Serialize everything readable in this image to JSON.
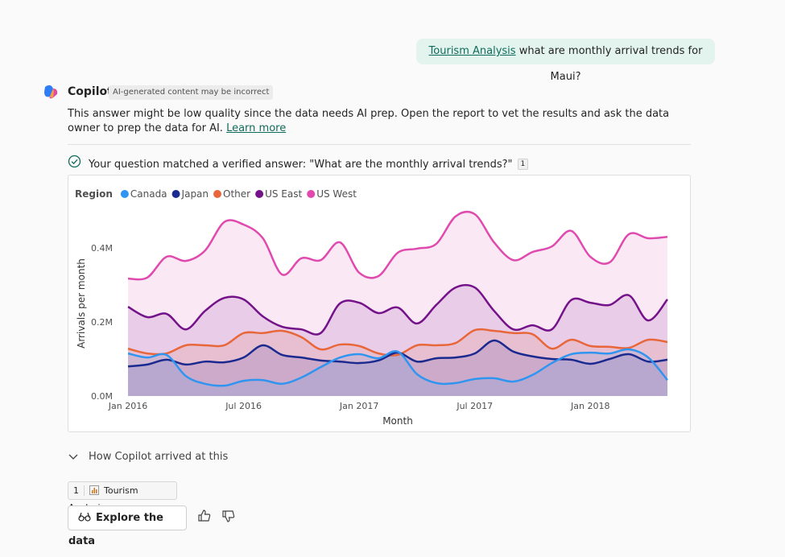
{
  "header": {
    "message_link": "Tourism Analysis",
    "message_text": "what are monthly arrival trends for Maui?"
  },
  "response": {
    "assistant": "Copilot",
    "badge": "AI-generated content may be incorrect",
    "notice": "This answer might be low quality since the data needs AI prep. Open the report to vet the results and ask the data owner to prep the data for AI.",
    "notice_link": "Learn more",
    "verified": "Your question matched a verified answer: \"What are the monthly arrival trends?\"",
    "verified_ref": "1",
    "details": "How Copilot arrived at this",
    "citation_ref": "1",
    "citation": "Tourism Analysis",
    "button": "Explore the data"
  },
  "chart_data": {
    "type": "line",
    "fill_area": true,
    "legend_title": "Region",
    "xlabel": "Month",
    "ylabel": "Arrivals per month",
    "x": [
      "2016-01",
      "2016-02",
      "2016-03",
      "2016-04",
      "2016-05",
      "2016-06",
      "2016-07",
      "2016-08",
      "2016-09",
      "2016-10",
      "2016-11",
      "2016-12",
      "2017-01",
      "2017-02",
      "2017-03",
      "2017-04",
      "2017-05",
      "2017-06",
      "2017-07",
      "2017-08",
      "2017-09",
      "2017-10",
      "2017-11",
      "2017-12",
      "2018-01",
      "2018-02",
      "2018-03",
      "2018-04",
      "2018-05"
    ],
    "xticks": [
      {
        "value": "2016-01",
        "label": "Jan 2016"
      },
      {
        "value": "2016-07",
        "label": "Jul 2016"
      },
      {
        "value": "2017-01",
        "label": "Jan 2017"
      },
      {
        "value": "2017-07",
        "label": "Jul 2017"
      },
      {
        "value": "2018-01",
        "label": "Jan 2018"
      }
    ],
    "ylim": [
      0,
      500000
    ],
    "yticks": [
      {
        "value": 0,
        "label": "0.0M"
      },
      {
        "value": 200000,
        "label": "0.2M"
      },
      {
        "value": 400000,
        "label": "0.4M"
      }
    ],
    "series": [
      {
        "name": "Canada",
        "color": "#2f95f0",
        "values": [
          115000,
          104000,
          111000,
          54000,
          33000,
          28000,
          41000,
          43000,
          33000,
          50000,
          78000,
          104000,
          113000,
          102000,
          120000,
          59000,
          35000,
          35000,
          46000,
          48000,
          39000,
          57000,
          89000,
          113000,
          117000,
          115000,
          126000,
          104000,
          43000
        ]
      },
      {
        "name": "Japan",
        "color": "#1b2a8f",
        "values": [
          80000,
          85000,
          98000,
          85000,
          93000,
          91000,
          104000,
          137000,
          111000,
          104000,
          96000,
          93000,
          89000,
          96000,
          117000,
          93000,
          102000,
          104000,
          115000,
          150000,
          120000,
          107000,
          100000,
          98000,
          87000,
          100000,
          113000,
          93000,
          98000
        ]
      },
      {
        "name": "Other",
        "color": "#e8673a",
        "values": [
          128000,
          115000,
          115000,
          137000,
          137000,
          137000,
          170000,
          170000,
          176000,
          159000,
          126000,
          139000,
          135000,
          115000,
          111000,
          137000,
          137000,
          143000,
          178000,
          176000,
          170000,
          167000,
          128000,
          152000,
          135000,
          133000,
          130000,
          152000,
          146000
        ]
      },
      {
        "name": "US East",
        "color": "#74128a",
        "values": [
          241000,
          213000,
          222000,
          180000,
          230000,
          265000,
          261000,
          215000,
          187000,
          180000,
          170000,
          250000,
          252000,
          224000,
          239000,
          196000,
          246000,
          293000,
          293000,
          230000,
          180000,
          191000,
          180000,
          259000,
          252000,
          246000,
          272000,
          204000,
          261000
        ]
      },
      {
        "name": "US West",
        "color": "#e04aae",
        "values": [
          317000,
          320000,
          376000,
          365000,
          393000,
          470000,
          463000,
          426000,
          328000,
          372000,
          367000,
          415000,
          333000,
          324000,
          387000,
          398000,
          411000,
          485000,
          491000,
          415000,
          367000,
          389000,
          404000,
          446000,
          376000,
          361000,
          437000,
          426000,
          430000
        ]
      }
    ]
  }
}
